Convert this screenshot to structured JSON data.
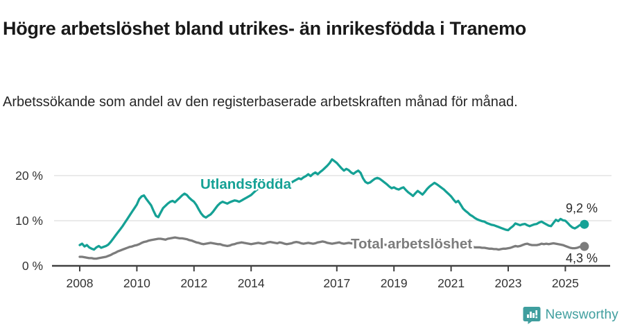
{
  "header": {
    "title": "Högre arbetslöshet bland utrikes- än inrikesfödda i Tranemo",
    "subtitle": "Arbetssökande som andel av den registerbaserade arbetskraften månad för månad."
  },
  "footer": {
    "brand": "Newsworthy",
    "brand_color": "#3F9E9E",
    "logo_icon": "speech-bubble-bar-chart-icon"
  },
  "colors": {
    "series_foreign": "#15A195",
    "series_total": "#7C7C7C",
    "grid": "#E4E4E4",
    "axis": "#404040",
    "tick_text": "#333333",
    "end_label_text": "#2B2B2B"
  },
  "chart_data": {
    "type": "line",
    "title": "Högre arbetslöshet bland utrikes- än inrikesfödda i Tranemo",
    "subtitle": "Arbetssökande som andel av den registerbaserade arbetskraften månad för månad.",
    "xlabel": "",
    "ylabel": "",
    "ylim": [
      0,
      24.5
    ],
    "x_range_years": [
      2008.0,
      2025.667
    ],
    "grid": "horizontal",
    "legend": "inline-labels",
    "x_start_year": 2008,
    "x_step_months": 1,
    "x_ticks": [
      {
        "year": 2008,
        "label": "2008"
      },
      {
        "year": 2010,
        "label": "2010"
      },
      {
        "year": 2012,
        "label": "2012"
      },
      {
        "year": 2014,
        "label": "2014"
      },
      {
        "year": 2017,
        "label": "2017"
      },
      {
        "year": 2019,
        "label": "2019"
      },
      {
        "year": 2021,
        "label": "2021"
      },
      {
        "year": 2023,
        "label": "2023"
      },
      {
        "year": 2025,
        "label": "2025"
      }
    ],
    "y_ticks": [
      {
        "value": 0,
        "label": "0 %"
      },
      {
        "value": 10,
        "label": "10 %"
      },
      {
        "value": 20,
        "label": "20 %"
      }
    ],
    "series": [
      {
        "name": "Utlandsfödda",
        "color": "#15A195",
        "end_label": "9,2 %",
        "end_value": 9.2,
        "values": [
          4.6,
          4.9,
          4.3,
          4.6,
          4.1,
          3.8,
          3.6,
          4.1,
          4.4,
          4.0,
          4.2,
          4.4,
          4.7,
          5.3,
          6.0,
          6.7,
          7.4,
          8.1,
          8.8,
          9.6,
          10.4,
          11.2,
          12.0,
          12.8,
          13.6,
          14.8,
          15.4,
          15.6,
          14.8,
          14.1,
          13.4,
          12.2,
          11.1,
          10.8,
          11.8,
          12.8,
          13.3,
          13.8,
          14.2,
          14.4,
          14.1,
          14.6,
          15.1,
          15.6,
          16.0,
          15.7,
          15.1,
          14.6,
          14.2,
          13.5,
          12.5,
          11.6,
          11.0,
          10.7,
          11.1,
          11.4,
          12.0,
          12.7,
          13.4,
          13.9,
          14.2,
          14.0,
          13.8,
          14.1,
          14.3,
          14.5,
          14.4,
          14.2,
          14.5,
          14.8,
          15.1,
          15.4,
          15.7,
          16.2,
          16.7,
          17.1,
          17.5,
          17.9,
          18.3,
          18.7,
          18.5,
          18.3,
          18.7,
          19.0,
          19.2,
          18.9,
          18.6,
          18.4,
          18.7,
          18.5,
          18.8,
          19.1,
          19.4,
          19.2,
          19.6,
          19.9,
          20.3,
          19.9,
          20.4,
          20.7,
          20.3,
          20.8,
          21.2,
          21.7,
          22.2,
          22.8,
          23.6,
          23.2,
          22.8,
          22.2,
          21.6,
          21.1,
          21.5,
          21.2,
          20.7,
          20.4,
          20.8,
          21.1,
          20.6,
          19.4,
          18.6,
          18.3,
          18.5,
          18.9,
          19.3,
          19.5,
          19.3,
          18.9,
          18.5,
          18.1,
          17.6,
          17.2,
          17.4,
          17.1,
          16.9,
          17.2,
          17.4,
          16.8,
          16.3,
          15.9,
          15.5,
          16.1,
          16.6,
          16.2,
          15.8,
          16.4,
          17.1,
          17.6,
          18.0,
          18.4,
          18.1,
          17.7,
          17.3,
          16.9,
          16.4,
          15.9,
          15.4,
          14.7,
          14.1,
          14.4,
          13.6,
          12.7,
          12.2,
          11.8,
          11.3,
          11.0,
          10.6,
          10.3,
          10.1,
          9.9,
          9.8,
          9.5,
          9.3,
          9.1,
          9.0,
          8.8,
          8.6,
          8.4,
          8.2,
          8.0,
          7.9,
          8.4,
          8.8,
          9.4,
          9.2,
          9.0,
          9.2,
          9.3,
          9.0,
          8.8,
          9.0,
          9.2,
          9.3,
          9.6,
          9.8,
          9.5,
          9.2,
          8.9,
          8.8,
          9.5,
          10.2,
          9.9,
          10.4,
          10.1,
          10.0,
          9.5,
          8.9,
          8.5,
          8.3,
          8.6,
          9.0,
          9.1,
          9.2
        ]
      },
      {
        "name": "Total arbetslöshet",
        "color": "#7C7C7C",
        "end_label": "4,3 %",
        "end_value": 4.3,
        "values": [
          2.0,
          2.0,
          1.9,
          1.8,
          1.7,
          1.7,
          1.6,
          1.6,
          1.7,
          1.8,
          1.9,
          2.0,
          2.2,
          2.4,
          2.7,
          2.9,
          3.2,
          3.4,
          3.6,
          3.8,
          4.0,
          4.2,
          4.3,
          4.5,
          4.6,
          4.8,
          5.1,
          5.3,
          5.4,
          5.6,
          5.7,
          5.8,
          5.9,
          6.0,
          6.0,
          5.9,
          5.8,
          6.0,
          6.1,
          6.2,
          6.3,
          6.2,
          6.1,
          6.1,
          6.0,
          5.9,
          5.7,
          5.6,
          5.4,
          5.2,
          5.1,
          4.9,
          4.8,
          4.9,
          5.0,
          5.1,
          5.0,
          4.9,
          4.8,
          4.8,
          4.6,
          4.5,
          4.4,
          4.5,
          4.7,
          4.8,
          5.0,
          5.1,
          5.2,
          5.1,
          5.0,
          4.9,
          4.8,
          4.9,
          5.0,
          5.1,
          5.0,
          4.9,
          5.0,
          5.2,
          5.3,
          5.2,
          5.1,
          5.0,
          5.2,
          5.1,
          4.9,
          4.8,
          4.9,
          5.0,
          5.2,
          5.3,
          5.2,
          5.0,
          4.9,
          5.0,
          5.1,
          5.0,
          4.9,
          5.0,
          5.2,
          5.3,
          5.4,
          5.3,
          5.1,
          5.0,
          4.9,
          5.0,
          5.1,
          5.2,
          5.0,
          4.9,
          5.0,
          5.1,
          5.0,
          4.9,
          4.8,
          4.9,
          5.0,
          5.1,
          5.0,
          4.9,
          4.8,
          4.7,
          4.8,
          4.9,
          5.0,
          4.9,
          4.7,
          4.6,
          4.5,
          4.6,
          4.7,
          4.6,
          4.5,
          4.4,
          4.5,
          4.6,
          4.7,
          4.6,
          4.5,
          4.6,
          4.7,
          4.8,
          4.9,
          5.0,
          5.2,
          5.4,
          5.5,
          5.6,
          5.5,
          5.4,
          5.2,
          5.1,
          5.0,
          4.9,
          5.0,
          5.1,
          5.0,
          4.9,
          4.8,
          4.6,
          4.5,
          4.4,
          4.3,
          4.2,
          4.1,
          4.1,
          4.1,
          4.0,
          4.0,
          3.9,
          3.8,
          3.8,
          3.7,
          3.7,
          3.6,
          3.7,
          3.8,
          3.8,
          3.9,
          4.0,
          4.2,
          4.4,
          4.3,
          4.4,
          4.6,
          4.8,
          4.9,
          4.7,
          4.6,
          4.6,
          4.6,
          4.7,
          4.9,
          4.8,
          4.9,
          4.8,
          4.9,
          5.0,
          4.9,
          4.8,
          4.7,
          4.6,
          4.4,
          4.2,
          4.0,
          3.9,
          3.9,
          4.0,
          4.2,
          4.3,
          4.3
        ]
      }
    ]
  }
}
